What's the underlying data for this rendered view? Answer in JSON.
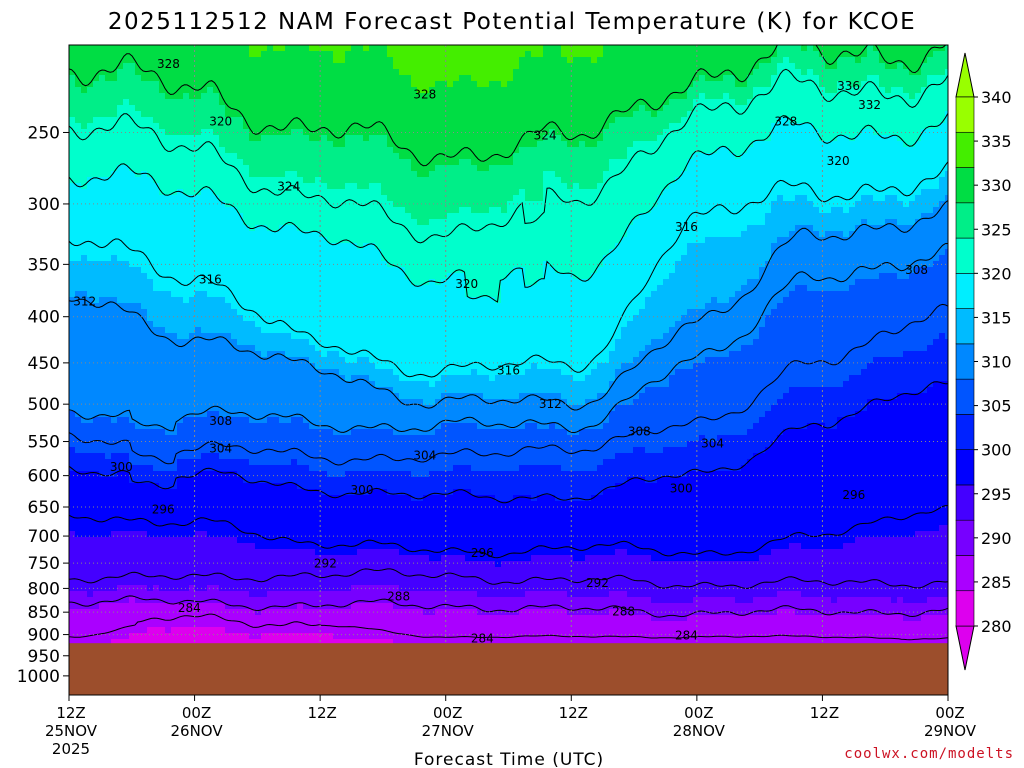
{
  "title": "2025112512 NAM Forecast Potential Temperature (K) for KCOE",
  "credit": "coolwx.com/modelts",
  "chart_data": {
    "type": "heatmap",
    "title": "2025112512 NAM Forecast Potential Temperature (K) for KCOE",
    "xlabel": "Forecast Time (UTC)",
    "ylabel": "",
    "x_hours": [
      0,
      12,
      24,
      36,
      48,
      60,
      72,
      84
    ],
    "x_tick_lines": [
      [
        "12Z",
        "25NOV",
        "2025"
      ],
      [
        "00Z",
        "26NOV"
      ],
      [
        "12Z"
      ],
      [
        "00Z",
        "27NOV"
      ],
      [
        "12Z"
      ],
      [
        "00Z",
        "28NOV"
      ],
      [
        "12Z"
      ],
      [
        "00Z",
        "29NOV"
      ]
    ],
    "y_ticks": [
      250,
      300,
      350,
      400,
      450,
      500,
      550,
      600,
      650,
      700,
      750,
      800,
      850,
      900,
      950,
      1000
    ],
    "ylim": [
      200,
      1050
    ],
    "ground_pressure": 920,
    "grid": true,
    "colorbar": {
      "ticks": [
        280,
        285,
        290,
        295,
        300,
        305,
        310,
        315,
        320,
        325,
        330,
        335,
        340
      ],
      "colors": [
        "#dd00ee",
        "#aa00ff",
        "#7700ff",
        "#4400ff",
        "#0000ff",
        "#0022ff",
        "#0055ff",
        "#0088ff",
        "#00bbff",
        "#00eeff",
        "#00ffcc",
        "#00ee88",
        "#00dd44",
        "#44ee00",
        "#99ff00"
      ],
      "levels": [
        277.5,
        280,
        282.5,
        285,
        287.5,
        290,
        292.5,
        295,
        297.5,
        300,
        302.5,
        305,
        307.5,
        310,
        312.5,
        315,
        317.5,
        320,
        322.5,
        325,
        327.5,
        330,
        332.5,
        335,
        337.5,
        340
      ]
    },
    "colors": {
      "ground": "#9c4e2c",
      "contour": "#000000",
      "grid": "#888888"
    },
    "contour_labels": [
      {
        "value": 328,
        "hour": 9.5,
        "pressure": 210
      },
      {
        "value": 328,
        "hour": 34,
        "pressure": 227
      },
      {
        "value": 336,
        "hour": 74.5,
        "pressure": 222
      },
      {
        "value": 332,
        "hour": 76.5,
        "pressure": 233
      },
      {
        "value": 328,
        "hour": 68.5,
        "pressure": 243
      },
      {
        "value": 324,
        "hour": 45.5,
        "pressure": 252
      },
      {
        "value": 320,
        "hour": 14.5,
        "pressure": 243
      },
      {
        "value": 320,
        "hour": 73.5,
        "pressure": 269
      },
      {
        "value": 324,
        "hour": 21,
        "pressure": 287
      },
      {
        "value": 316,
        "hour": 59,
        "pressure": 318
      },
      {
        "value": 320,
        "hour": 38,
        "pressure": 368
      },
      {
        "value": 316,
        "hour": 13.5,
        "pressure": 364
      },
      {
        "value": 312,
        "hour": 1.5,
        "pressure": 385
      },
      {
        "value": 308,
        "hour": 81,
        "pressure": 355
      },
      {
        "value": 316,
        "hour": 42,
        "pressure": 459
      },
      {
        "value": 312,
        "hour": 46,
        "pressure": 500
      },
      {
        "value": 308,
        "hour": 14.5,
        "pressure": 522
      },
      {
        "value": 308,
        "hour": 54.5,
        "pressure": 536
      },
      {
        "value": 304,
        "hour": 14.5,
        "pressure": 560
      },
      {
        "value": 304,
        "hour": 34,
        "pressure": 570
      },
      {
        "value": 304,
        "hour": 61.5,
        "pressure": 553
      },
      {
        "value": 300,
        "hour": 5,
        "pressure": 587
      },
      {
        "value": 300,
        "hour": 28,
        "pressure": 622
      },
      {
        "value": 300,
        "hour": 58.5,
        "pressure": 620
      },
      {
        "value": 296,
        "hour": 9,
        "pressure": 654
      },
      {
        "value": 296,
        "hour": 75,
        "pressure": 630
      },
      {
        "value": 296,
        "hour": 39.5,
        "pressure": 731
      },
      {
        "value": 292,
        "hour": 24.5,
        "pressure": 751
      },
      {
        "value": 292,
        "hour": 50.5,
        "pressure": 789
      },
      {
        "value": 288,
        "hour": 31.5,
        "pressure": 817
      },
      {
        "value": 288,
        "hour": 53,
        "pressure": 849
      },
      {
        "value": 284,
        "hour": 11.5,
        "pressure": 841
      },
      {
        "value": 284,
        "hour": 39.5,
        "pressure": 909
      },
      {
        "value": 284,
        "hour": 59,
        "pressure": 902
      }
    ]
  }
}
